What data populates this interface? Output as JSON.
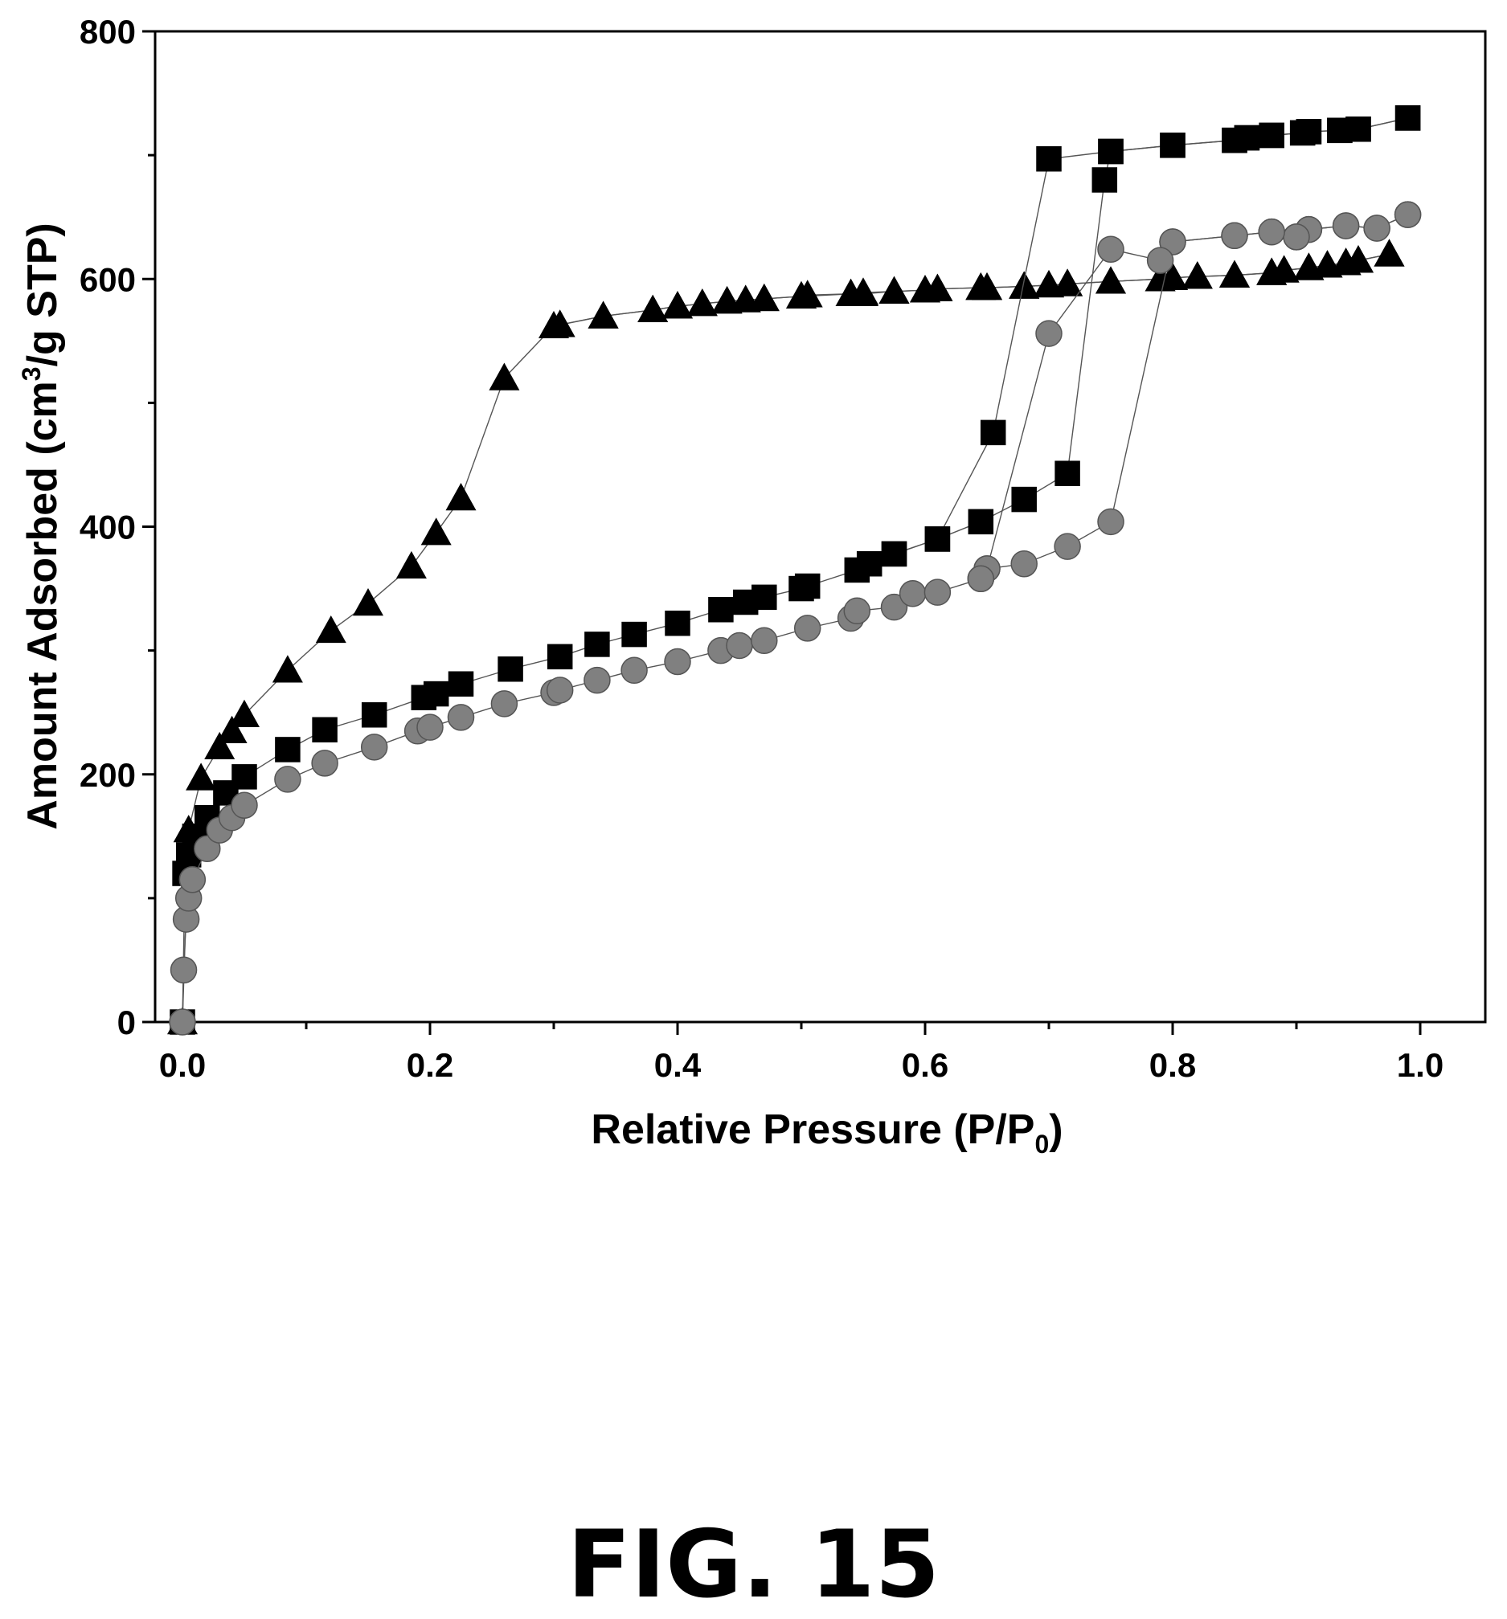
{
  "figure_label": "FIG. 15",
  "chart_data": {
    "type": "scatter",
    "xlabel": "Relative Pressure (P/P0)",
    "xlabel_parts": {
      "main": "Relative Pressure (P/P",
      "sub": "0",
      "end": ")"
    },
    "ylabel": "Amount Adsorbed (cm3/g STP)",
    "ylabel_parts": {
      "main": "Amount Adsorbed (cm",
      "sup": "3",
      "end": "/g STP)"
    },
    "xlim": [
      0.0,
      1.05
    ],
    "ylim": [
      0,
      800
    ],
    "xticks": [
      "0.0",
      "0.2",
      "0.4",
      "0.6",
      "0.8",
      "1.0"
    ],
    "yticks": [
      "0",
      "200",
      "400",
      "600",
      "800"
    ],
    "grid": false,
    "legend": "none",
    "series": [
      {
        "marker": "triangle",
        "color": "#000000",
        "adsorption": {
          "x": [
            0.0,
            0.005,
            0.015,
            0.03,
            0.04,
            0.05,
            0.085,
            0.12,
            0.15,
            0.185,
            0.205,
            0.225,
            0.26,
            0.3,
            0.34,
            0.38,
            0.4,
            0.42,
            0.44,
            0.455,
            0.47,
            0.5,
            0.54,
            0.55,
            0.575,
            0.6,
            0.61,
            0.645,
            0.65,
            0.68,
            0.7,
            0.715,
            0.75,
            0.79,
            0.8,
            0.82,
            0.85,
            0.88,
            0.89,
            0.91,
            0.925,
            0.94,
            0.95,
            0.975
          ],
          "y": [
            0,
            155,
            197,
            222,
            235,
            248,
            284,
            316,
            338,
            368,
            395,
            423,
            520,
            562,
            570,
            575,
            578,
            580,
            582,
            583,
            584,
            586,
            588,
            588,
            590,
            591,
            592,
            593,
            593,
            594,
            595,
            596,
            598,
            600,
            601,
            602,
            603,
            605,
            607,
            609,
            611,
            613,
            615,
            620
          ]
        },
        "desorption": {
          "x": [
            0.975,
            0.95,
            0.94,
            0.925,
            0.91,
            0.89,
            0.88,
            0.85,
            0.82,
            0.8,
            0.79,
            0.75,
            0.715,
            0.7,
            0.68,
            0.65,
            0.645,
            0.61,
            0.6,
            0.575,
            0.55,
            0.54,
            0.505,
            0.5,
            0.47,
            0.455,
            0.44,
            0.42,
            0.4,
            0.38,
            0.34,
            0.305
          ],
          "y": [
            620,
            615,
            613,
            611,
            609,
            607,
            605,
            603,
            602,
            601,
            600,
            598,
            596,
            595,
            594,
            593,
            593,
            592,
            591,
            590,
            589,
            588,
            587,
            586,
            584,
            583,
            582,
            580,
            578,
            575,
            570,
            563
          ]
        }
      },
      {
        "marker": "square",
        "color": "#000000",
        "adsorption": {
          "x": [
            0.0,
            0.002,
            0.005,
            0.01,
            0.02,
            0.035,
            0.05,
            0.085,
            0.115,
            0.155,
            0.195,
            0.205,
            0.225,
            0.265,
            0.305,
            0.335,
            0.365,
            0.4,
            0.435,
            0.455,
            0.47,
            0.5,
            0.505,
            0.545,
            0.555,
            0.575,
            0.61,
            0.645,
            0.68,
            0.715,
            0.745,
            0.75,
            0.8,
            0.85,
            0.86,
            0.88,
            0.905,
            0.91,
            0.935,
            0.95,
            0.99
          ],
          "y": [
            0,
            120,
            135,
            150,
            165,
            185,
            198,
            220,
            236,
            248,
            262,
            265,
            273,
            285,
            295,
            305,
            313,
            322,
            333,
            339,
            343,
            350,
            352,
            365,
            370,
            378,
            390,
            404,
            422,
            443,
            680,
            703,
            708,
            712,
            714,
            716,
            718,
            719,
            720,
            721,
            730
          ]
        },
        "desorption": {
          "x": [
            0.99,
            0.95,
            0.935,
            0.91,
            0.905,
            0.88,
            0.86,
            0.85,
            0.8,
            0.75,
            0.7,
            0.655,
            0.61,
            0.575
          ],
          "y": [
            730,
            721,
            720,
            719,
            718,
            716,
            714,
            712,
            708,
            703,
            697,
            476,
            390,
            378
          ]
        }
      },
      {
        "marker": "circle",
        "color": "#808080",
        "adsorption": {
          "x": [
            0.0,
            0.001,
            0.003,
            0.005,
            0.008,
            0.02,
            0.03,
            0.04,
            0.05,
            0.085,
            0.115,
            0.155,
            0.19,
            0.2,
            0.225,
            0.26,
            0.3,
            0.305,
            0.335,
            0.365,
            0.4,
            0.435,
            0.45,
            0.47,
            0.505,
            0.54,
            0.545,
            0.575,
            0.59,
            0.61,
            0.645,
            0.65,
            0.68,
            0.715,
            0.75,
            0.8,
            0.85,
            0.88,
            0.9,
            0.91,
            0.94,
            0.965,
            0.99
          ],
          "y": [
            0,
            42,
            83,
            100,
            115,
            140,
            155,
            165,
            175,
            196,
            209,
            222,
            235,
            238,
            246,
            257,
            266,
            268,
            276,
            284,
            291,
            300,
            304,
            308,
            318,
            326,
            332,
            335,
            346,
            347,
            358,
            366,
            370,
            384,
            404,
            630,
            635,
            638,
            634,
            640,
            643,
            641,
            652
          ]
        },
        "desorption": {
          "x": [
            0.99,
            0.965,
            0.94,
            0.91,
            0.9,
            0.88,
            0.85,
            0.8,
            0.79,
            0.75,
            0.7,
            0.65,
            0.645
          ],
          "y": [
            652,
            641,
            643,
            640,
            634,
            638,
            635,
            630,
            615,
            624,
            556,
            366,
            358
          ]
        }
      }
    ]
  }
}
